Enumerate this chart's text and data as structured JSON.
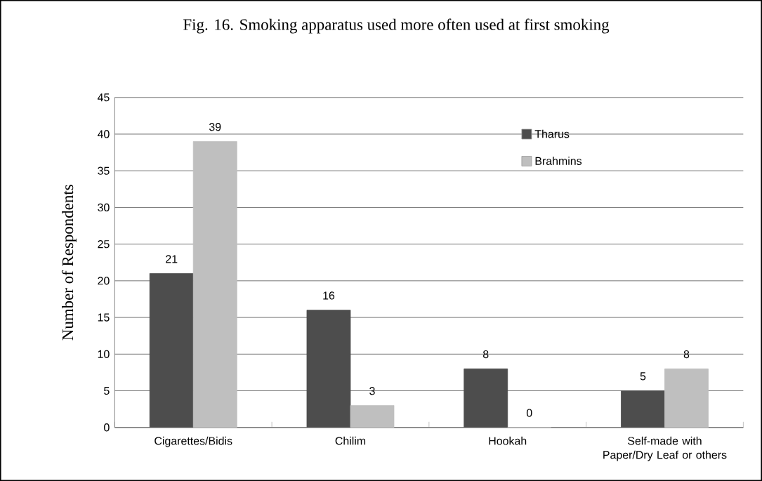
{
  "chart_data": {
    "type": "bar",
    "title": "Fig. 16.   Smoking apparatus used more often used at first smoking",
    "ylabel": "Number of Respondents",
    "categories": [
      "Cigarettes/Bidis",
      "Chilim",
      "Hookah",
      "Self-made with Paper/Dry Leaf or others"
    ],
    "series": [
      {
        "name": "Tharus",
        "color": "#4d4d4d",
        "values": [
          21,
          16,
          8,
          5
        ]
      },
      {
        "name": "Brahmins",
        "color": "#bfbfbf",
        "values": [
          39,
          3,
          0,
          8
        ]
      }
    ],
    "ylim": [
      0,
      45
    ],
    "yticks": [
      0,
      5,
      10,
      15,
      20,
      25,
      30,
      35,
      40,
      45
    ],
    "grid": "y",
    "legend": "top right",
    "data_labels": true
  }
}
